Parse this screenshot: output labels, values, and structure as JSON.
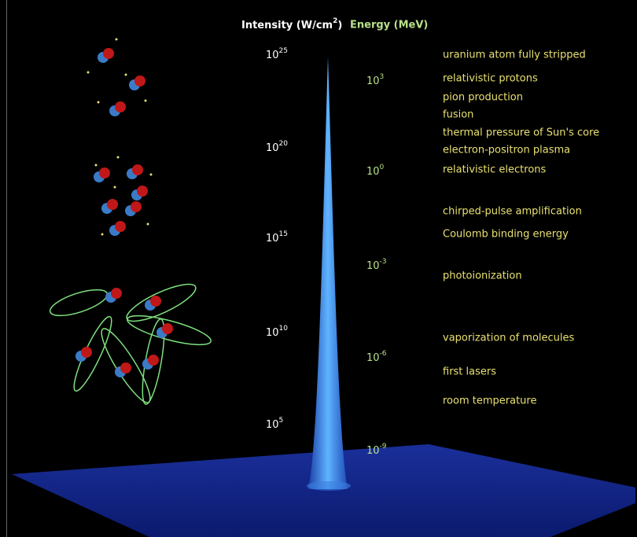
{
  "header": {
    "intensity": {
      "text": "Intensity (W/cm",
      "sup": "2",
      "close": ")"
    },
    "energy": "Energy (MeV)"
  },
  "intensity_labels": [
    {
      "base": "10",
      "exp": "25"
    },
    {
      "base": "10",
      "exp": "20"
    },
    {
      "base": "10",
      "exp": "15"
    },
    {
      "base": "10",
      "exp": "10"
    },
    {
      "base": "10",
      "exp": "5"
    }
  ],
  "energy_labels": [
    {
      "base": "10",
      "exp": "3"
    },
    {
      "base": "10",
      "exp": "0"
    },
    {
      "base": "10",
      "exp": "-3"
    },
    {
      "base": "10",
      "exp": "-6"
    },
    {
      "base": "10",
      "exp": "-9"
    }
  ],
  "phenomena": [
    "uranium atom fully stripped",
    "relativistic protons",
    "pion production",
    "fusion",
    "thermal pressure of Sun's core",
    "electron-positron plasma",
    "relativistic electrons",
    "chirped-pulse amplification",
    "Coulomb binding energy",
    "photoionization",
    "vaporization of molecules",
    "first lasers",
    "room temperature"
  ]
}
